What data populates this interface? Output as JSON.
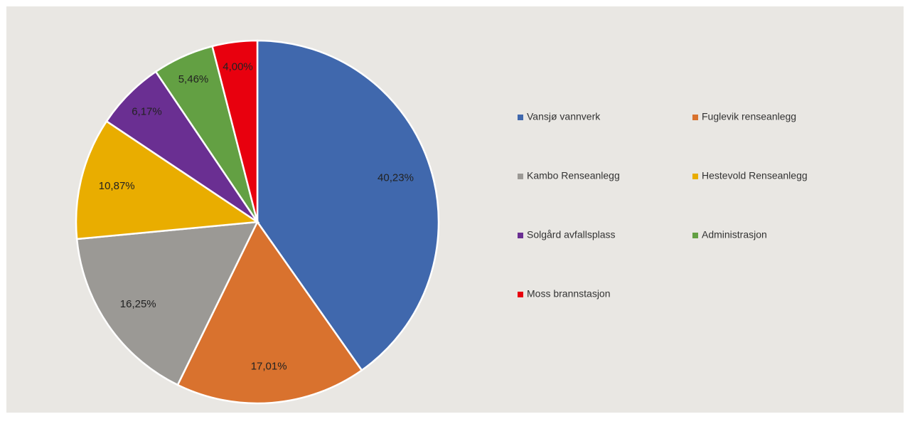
{
  "chart_data": {
    "type": "pie",
    "categories": [
      "Vansjø vannverk",
      "Fuglevik renseanlegg",
      "Kambo Renseanlegg",
      "Hestevold Renseanlegg",
      "Solgård avfallsplass",
      "Administrasjon",
      "Moss brannstasjon"
    ],
    "values": [
      40.23,
      17.01,
      16.25,
      10.87,
      6.17,
      5.46,
      4.0
    ],
    "value_labels": [
      "40,23%",
      "17,01%",
      "16,25%",
      "10,87%",
      "6,17%",
      "5,46%",
      "4,00%"
    ],
    "colors": [
      "#4068ad",
      "#d9722e",
      "#9b9995",
      "#e9ad00",
      "#6a2f92",
      "#63a043",
      "#e8000e"
    ],
    "legend": "right"
  }
}
